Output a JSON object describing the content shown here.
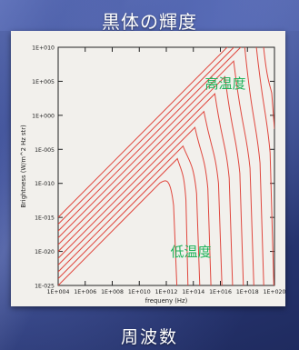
{
  "slide": {
    "title": "黒体の輝度",
    "top_left_fragment": "...",
    "bottom_label": "周波数"
  },
  "chart_data": {
    "type": "line",
    "title": "",
    "xlabel": "frequeny (Hz)",
    "ylabel": "Brightness (W/m^2 Hz str)",
    "x_scale": "log",
    "y_scale": "log",
    "xlim": [
      10000.0,
      1e+20
    ],
    "ylim": [
      1e-25,
      10000000000.0
    ],
    "x_ticks": [
      "1E+004",
      "1E+006",
      "1E+008",
      "1E+010",
      "1E+012",
      "1E+014",
      "1E+016",
      "1E+018",
      "1E+020"
    ],
    "y_ticks": [
      "1E+010",
      "1E+005",
      "1E+000",
      "1E-005",
      "1E-010",
      "1E-015",
      "1E-020",
      "1E-025"
    ],
    "annotations": [
      {
        "text": "高温度",
        "color": "#1fb35a"
      },
      {
        "text": "低温度",
        "color": "#1fb35a"
      }
    ],
    "line_color": "#e0473e",
    "series": [
      {
        "values": [
          [
            10000.0,
            1e-25
          ],
          [
            100000000000.0,
            1e-11
          ],
          [
            2000000000000.0,
            5e-10
          ],
          [
            6000000000000.0,
            1e-25
          ]
        ]
      },
      {
        "values": [
          [
            10000.0,
            1e-24
          ],
          [
            100000000000.0,
            1e-10
          ],
          [
            20000000000000.0,
            5e-09
          ],
          [
            40000000000000.0,
            1e-25
          ]
        ]
      },
      {
        "values": [
          [
            10000.0,
            1e-23
          ],
          [
            100000000000.0,
            1e-09
          ],
          [
            100000000000000.0,
            1e-07
          ],
          [
            300000000000000.0,
            1e-25
          ]
        ]
      },
      {
        "values": [
          [
            10000.0,
            1e-22
          ],
          [
            100000000000.0,
            1e-08
          ],
          [
            700000000000000.0,
            1e-06
          ],
          [
            2000000000000000.0,
            1e-25
          ]
        ]
      },
      {
        "values": [
          [
            10000.0,
            1e-21
          ],
          [
            100000000000.0,
            1e-07
          ],
          [
            4000000000000000.0,
            1e-05
          ],
          [
            1.3e+16,
            1e-25
          ]
        ]
      },
      {
        "values": [
          [
            10000.0,
            1e-20
          ],
          [
            100000000000.0,
            1e-06
          ],
          [
            2.5e+16,
            0.0001
          ],
          [
            8e+16,
            1e-25
          ]
        ]
      },
      {
        "values": [
          [
            10000.0,
            1e-19
          ],
          [
            100000000000.0,
            1e-05
          ],
          [
            1.5e+17,
            0.001
          ],
          [
            5e+17,
            1e-25
          ]
        ]
      },
      {
        "values": [
          [
            10000.0,
            1e-18
          ],
          [
            100000000000.0,
            0.0001
          ],
          [
            8e+17,
            0.01
          ],
          [
            3e+18,
            1e-25
          ]
        ]
      },
      {
        "values": [
          [
            10000.0,
            1e-17
          ],
          [
            100000000000.0,
            0.001
          ],
          [
            4.5e+18,
            0.1
          ],
          [
            1.6e+19,
            1e-25
          ]
        ]
      },
      {
        "values": [
          [
            10000.0,
            1e-16
          ],
          [
            100000000000.0,
            0.01
          ],
          [
            2.5e+19,
            10.0
          ],
          [
            9e+19,
            1e-25
          ]
        ]
      },
      {
        "values": [
          [
            10000.0,
            1e-15
          ],
          [
            100000000000.0,
            0.1
          ],
          [
            4e+19,
            100000.0
          ],
          [
            1e+20,
            0.01
          ]
        ]
      }
    ]
  }
}
